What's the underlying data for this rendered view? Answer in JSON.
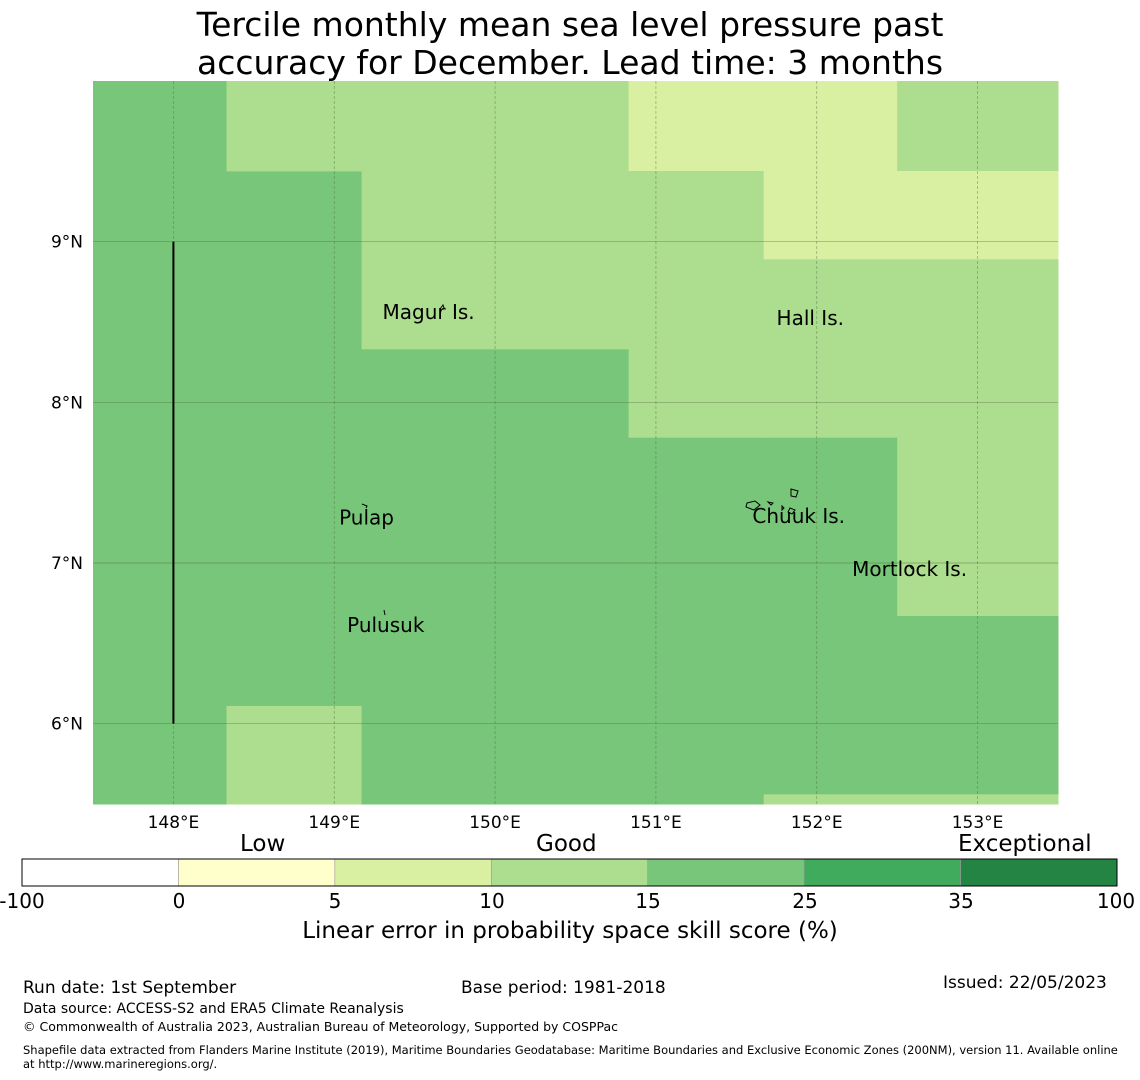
{
  "title": {
    "line1": "Tercile monthly mean sea level pressure past",
    "line2": "accuracy for December. Lead time: 3 months"
  },
  "map": {
    "lon_range": [
      147.5,
      153.5
    ],
    "lat_range": [
      5.5,
      10.0
    ],
    "lon_ticks": [
      148,
      149,
      150,
      151,
      152,
      153
    ],
    "lat_ticks": [
      6,
      7,
      8,
      9
    ],
    "lon_tick_labels": [
      "148°E",
      "149°E",
      "150°E",
      "151°E",
      "152°E",
      "153°E"
    ],
    "lat_tick_labels": [
      "6°N",
      "7°N",
      "8°N",
      "9°N"
    ],
    "gridlines": true,
    "grid_cells": [
      {
        "lon": [
          147.5,
          148.33
        ],
        "lat": [
          5.5,
          10.0
        ],
        "skill_class": "15-25"
      },
      {
        "lon": [
          148.33,
          149.17
        ],
        "lat": [
          6.11,
          9.44
        ],
        "skill_class": "15-25"
      },
      {
        "lon": [
          148.33,
          149.17
        ],
        "lat": [
          9.44,
          10.0
        ],
        "skill_class": "10-15"
      },
      {
        "lon": [
          148.33,
          149.17
        ],
        "lat": [
          5.5,
          6.11
        ],
        "skill_class": "10-15"
      },
      {
        "lon": [
          149.17,
          150.83
        ],
        "lat": [
          8.33,
          10.0
        ],
        "skill_class": "10-15"
      },
      {
        "lon": [
          149.17,
          150.83
        ],
        "lat": [
          5.5,
          8.33
        ],
        "skill_class": "15-25"
      },
      {
        "lon": [
          150.83,
          151.67
        ],
        "lat": [
          9.44,
          10.0
        ],
        "skill_class": "5-10"
      },
      {
        "lon": [
          150.83,
          151.67
        ],
        "lat": [
          7.78,
          9.44
        ],
        "skill_class": "10-15"
      },
      {
        "lon": [
          150.83,
          151.67
        ],
        "lat": [
          5.5,
          7.78
        ],
        "skill_class": "15-25"
      },
      {
        "lon": [
          151.67,
          152.5
        ],
        "lat": [
          8.89,
          10.0
        ],
        "skill_class": "5-10"
      },
      {
        "lon": [
          151.67,
          152.5
        ],
        "lat": [
          7.78,
          8.89
        ],
        "skill_class": "10-15"
      },
      {
        "lon": [
          151.67,
          152.5
        ],
        "lat": [
          5.56,
          7.78
        ],
        "skill_class": "15-25"
      },
      {
        "lon": [
          151.67,
          152.5
        ],
        "lat": [
          5.5,
          5.56
        ],
        "skill_class": "10-15"
      },
      {
        "lon": [
          152.5,
          153.5
        ],
        "lat": [
          9.44,
          10.0
        ],
        "skill_class": "10-15"
      },
      {
        "lon": [
          152.5,
          153.5
        ],
        "lat": [
          8.89,
          9.44
        ],
        "skill_class": "5-10"
      },
      {
        "lon": [
          152.5,
          153.5
        ],
        "lat": [
          6.67,
          8.89
        ],
        "skill_class": "10-15"
      },
      {
        "lon": [
          152.5,
          153.5
        ],
        "lat": [
          5.56,
          6.67
        ],
        "skill_class": "15-25"
      },
      {
        "lon": [
          152.5,
          153.5
        ],
        "lat": [
          5.5,
          5.56
        ],
        "skill_class": "10-15"
      }
    ],
    "boundary_line": {
      "lon": 148.0,
      "lat": [
        6.0,
        9.0
      ]
    },
    "places": [
      {
        "name": "Magur Is.",
        "lon": 149.3,
        "lat": 8.52
      },
      {
        "name": "Hall Is.",
        "lon": 151.75,
        "lat": 8.48
      },
      {
        "name": "Pulap",
        "lon": 149.03,
        "lat": 7.24
      },
      {
        "name": "Chuuk Is.",
        "lon": 151.6,
        "lat": 7.25
      },
      {
        "name": "Mortlock Is.",
        "lon": 152.22,
        "lat": 6.92
      },
      {
        "name": "Pulusuk",
        "lon": 149.08,
        "lat": 6.57
      }
    ]
  },
  "colorbar": {
    "categories": [
      "Low",
      "Good",
      "Exceptional"
    ],
    "tick_labels": [
      "-100",
      "0",
      "5",
      "10",
      "15",
      "25",
      "35",
      "100"
    ],
    "bins": [
      {
        "range": "-100-0",
        "color": "#ffffff"
      },
      {
        "range": "0-5",
        "color": "#ffffcc"
      },
      {
        "range": "5-10",
        "color": "#d9f0a3"
      },
      {
        "range": "10-15",
        "color": "#addd8e"
      },
      {
        "range": "15-25",
        "color": "#78c679"
      },
      {
        "range": "25-35",
        "color": "#41ab5d"
      },
      {
        "range": "35-100",
        "color": "#238443"
      }
    ],
    "label": "Linear error in probability space skill score (%)"
  },
  "footer": {
    "run_date": "Run date: 1st September",
    "base_period": "Base period: 1981-2018",
    "issued": "Issued: 22/05/2023",
    "data_source": "Data source: ACCESS-S2 and ERA5 Climate Reanalysis",
    "copyright": "© Commonwealth of Australia 2023, Australian Bureau of Meteorology, Supported by COSPPac",
    "shapefile": "Shapefile data extracted from Flanders Marine Institute (2019), Maritime Boundaries Geodatabase: Maritime Boundaries and Exclusive Economic Zones (200NM), version 11. Available online at http://www.marineregions.org/."
  }
}
